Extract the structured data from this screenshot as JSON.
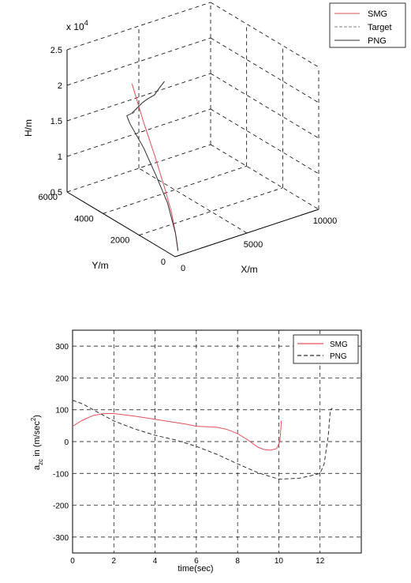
{
  "chart_data": [
    {
      "type": "line",
      "projection": "3d",
      "xlabel": "X/m",
      "ylabel": "Y/m",
      "zlabel": "H/m",
      "z_multiplier": "x 10",
      "z_multiplier_exp": "4",
      "xlim": [
        0,
        10000
      ],
      "ylim": [
        0,
        6000
      ],
      "zlim": [
        0.5,
        2.5
      ],
      "x_ticks": [
        "0",
        "5000",
        "10000"
      ],
      "y_ticks": [
        "0",
        "2000",
        "4000",
        "6000"
      ],
      "z_ticks": [
        "0.5",
        "1",
        "1.5",
        "2",
        "2.5"
      ],
      "grid": true,
      "legend_position": "top-right",
      "colors": {
        "SMG": "#e0505a",
        "Target": "#7a7f8a",
        "PNG": "#303030"
      },
      "series": [
        {
          "name": "SMG",
          "points": [
            [
              300,
              80,
              0.55
            ],
            [
              450,
              300,
              0.7
            ],
            [
              500,
              600,
              1.0
            ],
            [
              500,
              1000,
              1.3
            ],
            [
              480,
              1500,
              1.65
            ],
            [
              430,
              2100,
              2.05
            ],
            [
              380,
              2700,
              2.5
            ]
          ]
        },
        {
          "name": "Target",
          "points": [
            [
              800,
              3000,
              2.0
            ],
            [
              1400,
              3200,
              2.02
            ],
            [
              2000,
              3400,
              2.02
            ],
            [
              2600,
              3600,
              2.0
            ],
            [
              3200,
              3700,
              2.0
            ],
            [
              3800,
              3900,
              2.03
            ],
            [
              4400,
              4100,
              2.05
            ]
          ]
        },
        {
          "name": "PNG",
          "points": [
            [
              300,
              80,
              0.55
            ],
            [
              460,
              350,
              0.75
            ],
            [
              480,
              800,
              1.1
            ],
            [
              430,
              1400,
              1.4
            ],
            [
              330,
              2000,
              1.7
            ],
            [
              230,
              2700,
              1.95
            ],
            [
              400,
              3000,
              2.0
            ],
            [
              800,
              3050,
              2.0
            ],
            [
              1400,
              3200,
              2.02
            ],
            [
              2000,
              3400,
              2.02
            ],
            [
              2600,
              3600,
              2.0
            ],
            [
              3200,
              3700,
              2.0
            ],
            [
              3800,
              3900,
              2.03
            ],
            [
              4400,
              4100,
              2.05
            ]
          ]
        }
      ]
    },
    {
      "type": "line",
      "xlabel": "time(sec)",
      "ylabel_main": "a",
      "ylabel_sub": "zc",
      "ylabel_rest": " in  (m/sec",
      "ylabel_sup": "2",
      "ylabel_end": ")",
      "xlim": [
        0,
        14
      ],
      "ylim": [
        -350,
        350
      ],
      "x_ticks": [
        0,
        2,
        4,
        6,
        8,
        10,
        12
      ],
      "y_ticks": [
        300,
        200,
        100,
        0,
        -100,
        -200,
        -300
      ],
      "grid": true,
      "legend_position": "top-right",
      "colors": {
        "SMG": "#e0505a",
        "PNG": "#303030"
      },
      "series": [
        {
          "name": "SMG",
          "x": [
            0,
            0.5,
            1,
            1.5,
            2,
            3,
            4,
            5,
            5.5,
            6,
            6.5,
            7,
            7.5,
            8,
            8.5,
            9,
            9.3,
            9.6,
            9.9,
            10.05,
            10.1,
            10.12
          ],
          "y": [
            48,
            68,
            82,
            88,
            88,
            80,
            70,
            60,
            55,
            48,
            47,
            45,
            38,
            25,
            5,
            -18,
            -25,
            -27,
            -22,
            0,
            40,
            65
          ]
        },
        {
          "name": "PNG",
          "x": [
            0,
            0.5,
            1,
            2,
            3,
            4,
            5,
            6,
            7,
            8,
            9,
            10,
            11,
            11.5,
            12,
            12.2,
            12.4,
            12.5,
            12.6
          ],
          "y": [
            130,
            118,
            100,
            65,
            40,
            20,
            5,
            -15,
            -40,
            -70,
            -98,
            -118,
            -115,
            -108,
            -100,
            -70,
            20,
            100,
            105
          ]
        }
      ]
    }
  ]
}
